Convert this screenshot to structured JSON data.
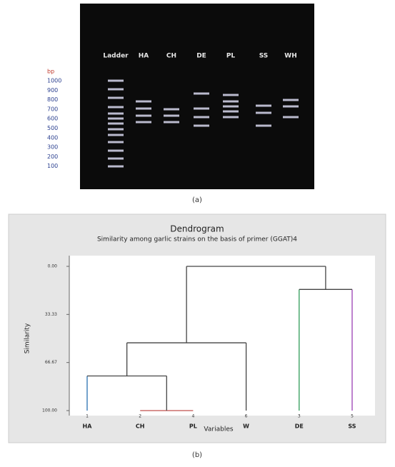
{
  "gel": {
    "lanes": [
      "Ladder",
      "HA",
      "CH",
      "DE",
      "PL",
      "SS",
      "WH"
    ],
    "unit": "bp",
    "size_labels": [
      1000,
      900,
      800,
      700,
      600,
      500,
      400,
      300,
      200,
      100
    ],
    "caption": "(a)"
  },
  "chart_data": {
    "type": "dendrogram",
    "title": "Dendrogram",
    "subtitle": "Similarity among garlic strains on the basis of primer (GGAT)4",
    "y_label": "Similarity",
    "x_label": "Variables",
    "leaves": [
      {
        "name": "HA",
        "number": "1",
        "color": "#2a6fb0"
      },
      {
        "name": "CH",
        "number": "2",
        "color": "#444444"
      },
      {
        "name": "PL",
        "number": "4",
        "color": "#c0504d"
      },
      {
        "name": "W",
        "number": "6",
        "color": "#444444"
      },
      {
        "name": "DE",
        "number": "3",
        "color": "#2e9b57"
      },
      {
        "name": "SS",
        "number": "5",
        "color": "#9b3fb5"
      }
    ],
    "merges": [
      {
        "join": [
          1,
          2
        ],
        "similarity": 100
      },
      {
        "join": [
          0,
          6
        ],
        "similarity": 76
      },
      {
        "join": [
          7,
          3
        ],
        "similarity": 53
      },
      {
        "join": [
          4,
          5
        ],
        "similarity": 16
      },
      {
        "join": [
          8,
          9
        ],
        "similarity": 0
      }
    ],
    "ylim": [
      100,
      0
    ],
    "yticks": [
      {
        "value": 0,
        "label": "0.00"
      },
      {
        "value": 33.33,
        "label": "33.33"
      },
      {
        "value": 66.67,
        "label": "66.67"
      },
      {
        "value": 100,
        "label": "100.00"
      }
    ],
    "caption": "(b)"
  }
}
